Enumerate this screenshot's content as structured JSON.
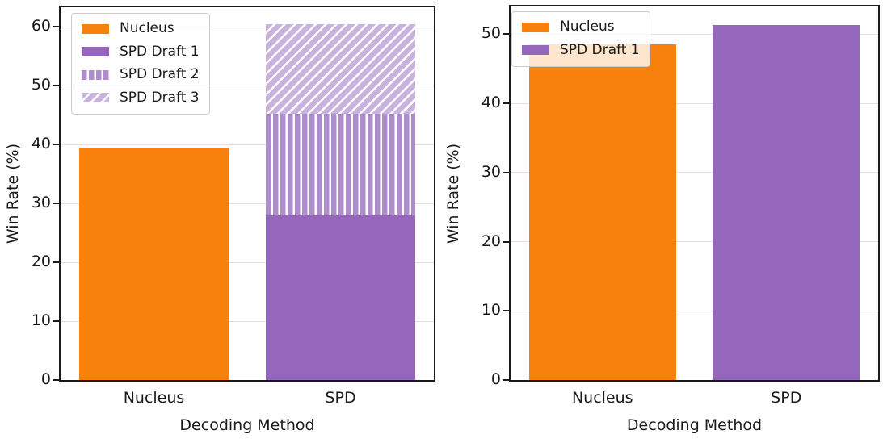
{
  "colors": {
    "orange": "#f8810e",
    "purple": "#9467bd",
    "purple_light": "#af8dcd",
    "purple_lighter": "#c9b3de",
    "hatch_line": "#ffffff",
    "grid": "#e0e0e0",
    "spine": "#1a1a1a",
    "text": "#1a1a1a"
  },
  "styles": {
    "orange-solid": {
      "color": "#f8810e",
      "hatch": "none"
    },
    "purple-solid": {
      "color": "#9467bd",
      "hatch": "none"
    },
    "purple-vertical-hatch": {
      "color": "#af8dcd",
      "hatch": "vertical"
    },
    "purple-diagonal-hatch": {
      "color": "#c9b3de",
      "hatch": "diagonal"
    }
  },
  "chart_data": [
    {
      "id": "left",
      "type": "bar",
      "stacked": true,
      "title": "",
      "xlabel": "Decoding Method",
      "ylabel": "Win Rate (%)",
      "categories": [
        "Nucleus",
        "SPD"
      ],
      "yticks": [
        0,
        10,
        20,
        30,
        40,
        50,
        60
      ],
      "ylim": [
        0,
        63.3
      ],
      "grid": true,
      "legend_position": "upper-left",
      "legend": [
        {
          "label": "Nucleus",
          "style": "orange-solid"
        },
        {
          "label": "SPD Draft 1",
          "style": "purple-solid"
        },
        {
          "label": "SPD Draft 2",
          "style": "purple-vertical-hatch"
        },
        {
          "label": "SPD Draft 3",
          "style": "purple-diagonal-hatch"
        }
      ],
      "series": [
        {
          "name": "Nucleus",
          "category": "Nucleus",
          "value": 39.4,
          "style": "orange-solid"
        },
        {
          "name": "SPD Draft 1",
          "category": "SPD",
          "value": 27.9,
          "style": "purple-solid"
        },
        {
          "name": "SPD Draft 2",
          "category": "SPD",
          "value": 17.3,
          "style": "purple-vertical-hatch"
        },
        {
          "name": "SPD Draft 3",
          "category": "SPD",
          "value": 15.2,
          "style": "purple-diagonal-hatch"
        }
      ],
      "spd_stack_total": 60.4
    },
    {
      "id": "right",
      "type": "bar",
      "stacked": false,
      "title": "",
      "xlabel": "Decoding Method",
      "ylabel": "Win Rate (%)",
      "categories": [
        "Nucleus",
        "SPD"
      ],
      "yticks": [
        0,
        10,
        20,
        30,
        40,
        50
      ],
      "ylim": [
        0,
        54
      ],
      "grid": true,
      "legend_position": "upper-left",
      "legend": [
        {
          "label": "Nucleus",
          "style": "orange-solid"
        },
        {
          "label": "SPD Draft 1",
          "style": "purple-solid"
        }
      ],
      "series": [
        {
          "name": "Nucleus",
          "category": "Nucleus",
          "value": 48.5,
          "style": "orange-solid"
        },
        {
          "name": "SPD Draft 1",
          "category": "SPD",
          "value": 51.3,
          "style": "purple-solid"
        }
      ]
    }
  ]
}
